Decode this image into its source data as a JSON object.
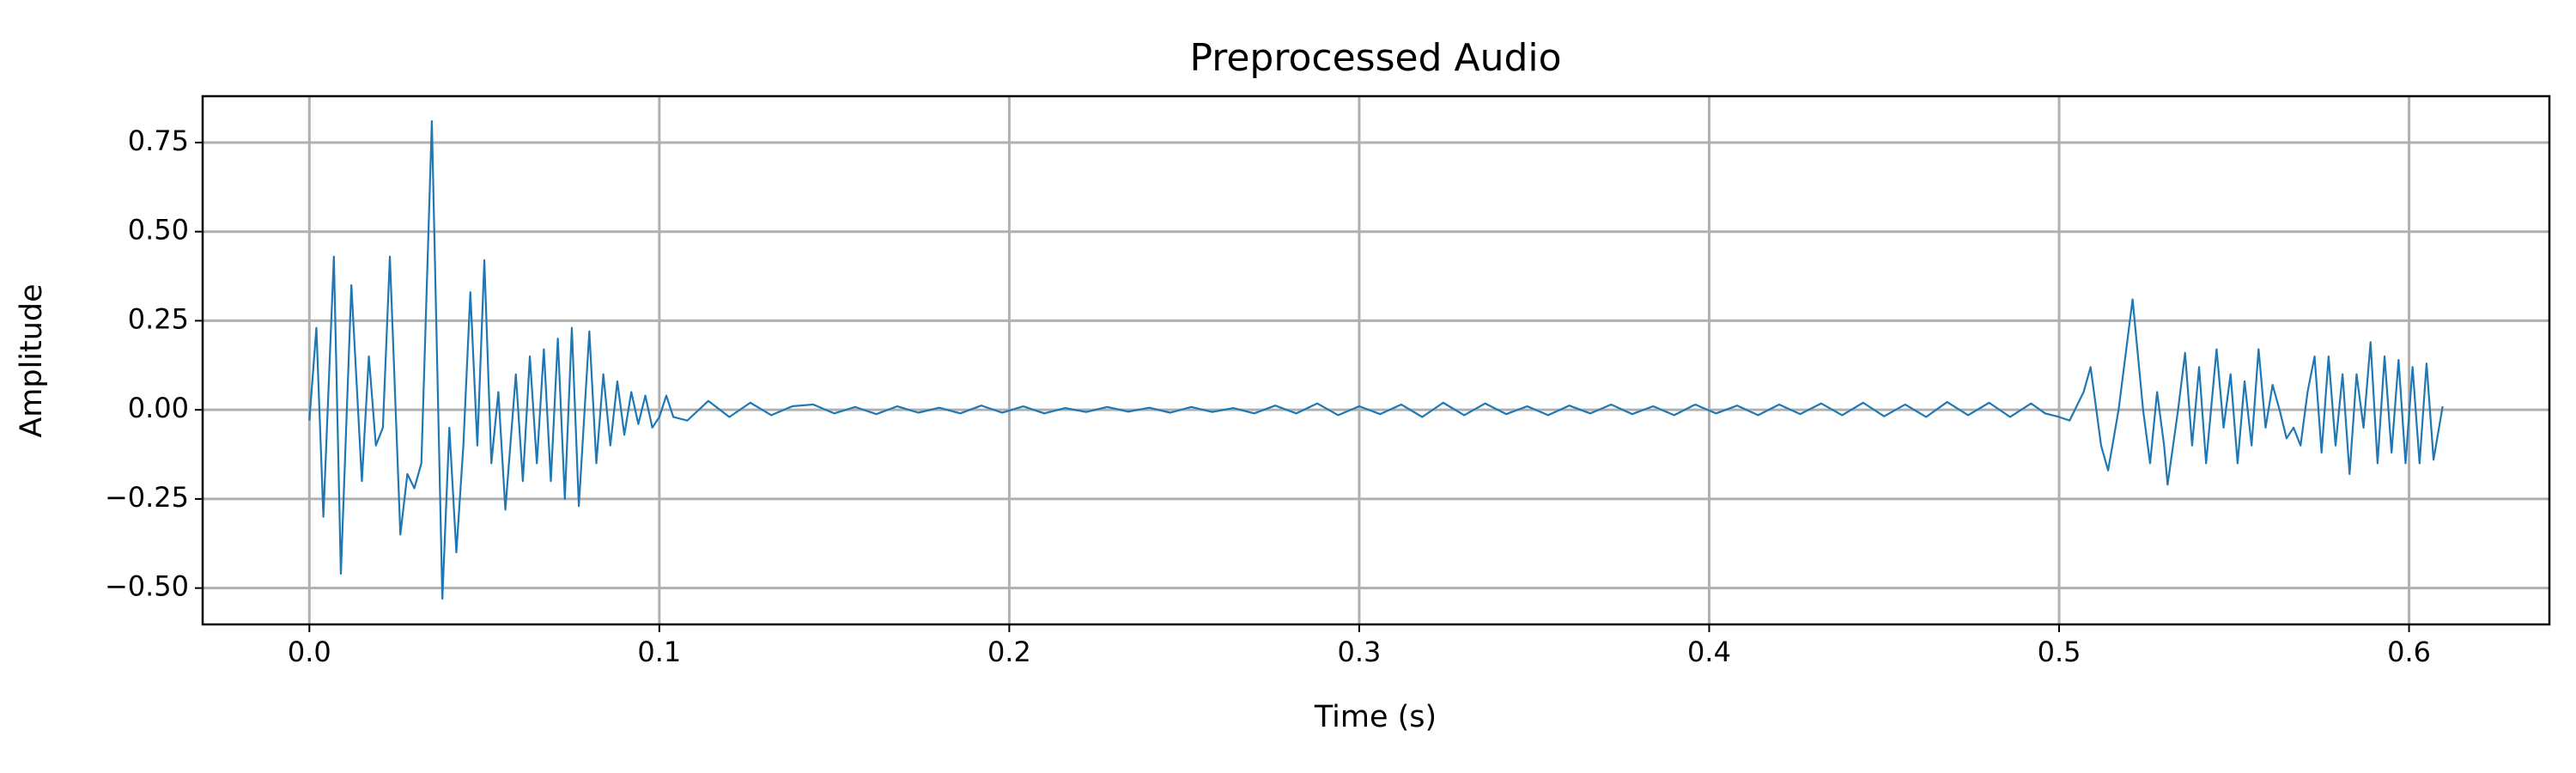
{
  "chart_data": {
    "type": "line",
    "title": "Preprocessed Audio",
    "x_label": "Time (s)",
    "y_label": "Amplitude",
    "color": "#1f77b4",
    "grid": true,
    "xlim": [
      -0.0305,
      0.6401
    ],
    "ylim": [
      -0.602,
      0.88
    ],
    "xticks": [
      {
        "value": 0,
        "label": "0.0"
      },
      0.1,
      0.2,
      0.3,
      0.4,
      0.5,
      0.6
    ],
    "yticks": [
      {
        "value": -0.5,
        "label": "−0.50"
      },
      {
        "value": -0.25,
        "label": "−0.25"
      },
      {
        "value": 0,
        "label": "0.00"
      },
      0.25,
      {
        "value": 0.5,
        "label": "0.50"
      },
      0.75
    ],
    "x": [
      0.0,
      0.002,
      0.004,
      0.007,
      0.009,
      0.012,
      0.015,
      0.017,
      0.019,
      0.021,
      0.023,
      0.026,
      0.028,
      0.03,
      0.032,
      0.035,
      0.038,
      0.04,
      0.042,
      0.044,
      0.046,
      0.048,
      0.05,
      0.052,
      0.054,
      0.056,
      0.059,
      0.061,
      0.063,
      0.065,
      0.067,
      0.069,
      0.071,
      0.073,
      0.075,
      0.077,
      0.08,
      0.082,
      0.084,
      0.086,
      0.088,
      0.09,
      0.092,
      0.094,
      0.096,
      0.098,
      0.1,
      0.102,
      0.104,
      0.108,
      0.114,
      0.12,
      0.126,
      0.132,
      0.138,
      0.144,
      0.15,
      0.156,
      0.162,
      0.168,
      0.174,
      0.18,
      0.186,
      0.192,
      0.198,
      0.204,
      0.21,
      0.216,
      0.222,
      0.228,
      0.234,
      0.24,
      0.246,
      0.252,
      0.258,
      0.264,
      0.27,
      0.276,
      0.282,
      0.288,
      0.294,
      0.3,
      0.306,
      0.312,
      0.318,
      0.324,
      0.33,
      0.336,
      0.342,
      0.348,
      0.354,
      0.36,
      0.366,
      0.372,
      0.378,
      0.384,
      0.39,
      0.396,
      0.402,
      0.408,
      0.414,
      0.42,
      0.426,
      0.432,
      0.438,
      0.444,
      0.45,
      0.456,
      0.462,
      0.468,
      0.474,
      0.48,
      0.486,
      0.492,
      0.496,
      0.5,
      0.503,
      0.507,
      0.509,
      0.512,
      0.514,
      0.517,
      0.521,
      0.524,
      0.526,
      0.528,
      0.53,
      0.531,
      0.534,
      0.536,
      0.538,
      0.54,
      0.542,
      0.545,
      0.547,
      0.549,
      0.551,
      0.553,
      0.555,
      0.557,
      0.559,
      0.561,
      0.563,
      0.565,
      0.567,
      0.569,
      0.571,
      0.573,
      0.575,
      0.577,
      0.579,
      0.581,
      0.583,
      0.585,
      0.587,
      0.589,
      0.591,
      0.593,
      0.595,
      0.597,
      0.599,
      0.601,
      0.603,
      0.605,
      0.607,
      0.6096
    ],
    "values": [
      -0.03,
      0.23,
      -0.3,
      0.43,
      -0.46,
      0.35,
      -0.2,
      0.15,
      -0.1,
      -0.05,
      0.43,
      -0.35,
      -0.18,
      -0.22,
      -0.15,
      0.81,
      -0.53,
      -0.05,
      -0.4,
      -0.1,
      0.33,
      -0.1,
      0.42,
      -0.15,
      0.05,
      -0.28,
      0.1,
      -0.2,
      0.15,
      -0.15,
      0.17,
      -0.2,
      0.2,
      -0.25,
      0.23,
      -0.27,
      0.22,
      -0.15,
      0.1,
      -0.1,
      0.08,
      -0.07,
      0.05,
      -0.04,
      0.04,
      -0.05,
      -0.02,
      0.04,
      -0.02,
      -0.03,
      0.025,
      -0.02,
      0.02,
      -0.015,
      0.01,
      0.015,
      -0.01,
      0.008,
      -0.012,
      0.01,
      -0.008,
      0.006,
      -0.01,
      0.012,
      -0.008,
      0.01,
      -0.01,
      0.005,
      -0.006,
      0.008,
      -0.005,
      0.006,
      -0.008,
      0.008,
      -0.006,
      0.005,
      -0.01,
      0.012,
      -0.01,
      0.018,
      -0.015,
      0.01,
      -0.012,
      0.015,
      -0.02,
      0.02,
      -0.015,
      0.018,
      -0.012,
      0.01,
      -0.015,
      0.012,
      -0.01,
      0.015,
      -0.012,
      0.01,
      -0.015,
      0.015,
      -0.01,
      0.012,
      -0.015,
      0.015,
      -0.012,
      0.018,
      -0.015,
      0.02,
      -0.018,
      0.015,
      -0.02,
      0.022,
      -0.015,
      0.02,
      -0.02,
      0.018,
      -0.01,
      -0.02,
      -0.03,
      0.05,
      0.12,
      -0.1,
      -0.17,
      0.0,
      0.31,
      0.0,
      -0.15,
      0.05,
      -0.1,
      -0.21,
      0.0,
      0.16,
      -0.1,
      0.12,
      -0.15,
      0.17,
      -0.05,
      0.1,
      -0.15,
      0.08,
      -0.1,
      0.17,
      -0.05,
      0.07,
      0.0,
      -0.08,
      -0.05,
      -0.1,
      0.05,
      0.15,
      -0.12,
      0.15,
      -0.1,
      0.1,
      -0.18,
      0.1,
      -0.05,
      0.19,
      -0.15,
      0.15,
      -0.12,
      0.14,
      -0.15,
      0.12,
      -0.15,
      0.13,
      -0.14,
      0.01
    ]
  }
}
